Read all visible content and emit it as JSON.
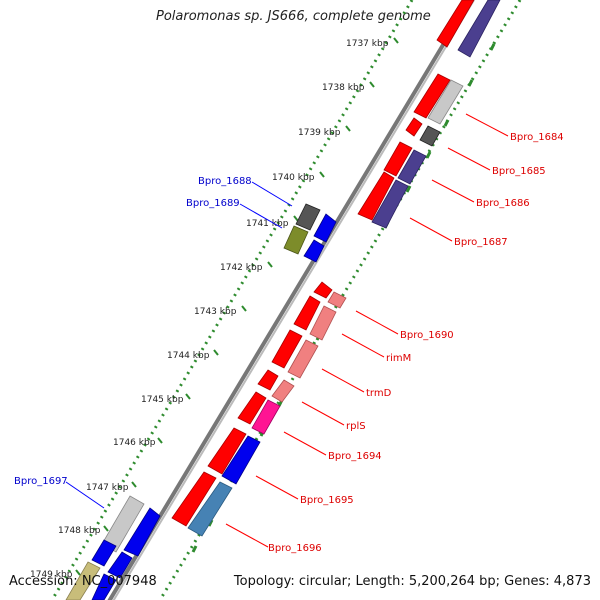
{
  "title": "Polaromonas sp. JS666, complete genome",
  "accession": "Accession: NC_007948",
  "topology": "Topology: circular; Length: 5,200,264 bp; Genes: 4,873",
  "ticks": [
    "1737 kbp",
    "1738 kbp",
    "1739 kbp",
    "1740 kbp",
    "1741 kbp",
    "1742 kbp",
    "1743 kbp",
    "1744 kbp",
    "1745 kbp",
    "1746 kbp",
    "1747 kbp",
    "1748 kbp",
    "1749 kbp"
  ],
  "gene_labels_right": [
    "Bpro_1684",
    "Bpro_1685",
    "Bpro_1686",
    "Bpro_1687",
    "Bpro_1690",
    "rimM",
    "trmD",
    "rplS",
    "Bpro_1694",
    "Bpro_1695",
    "Bpro_1696"
  ],
  "gene_labels_left": [
    "Bpro_1688",
    "Bpro_1689",
    "Bpro_1697"
  ],
  "colors": {
    "red": "#ff0000",
    "blue": "#0000ee",
    "purple": "#4b3f8f",
    "pink": "#f08080",
    "gray": "#c8c8c8",
    "darkgray": "#555555",
    "olive": "#7d8c2a",
    "magenta": "#ff1493",
    "steelblue": "#4682b4",
    "khaki": "#c8bd7a",
    "tickgreen": "#2e8b2e",
    "label_red": "#dd0000",
    "label_blue": "#0000cc",
    "backbone": "#808080"
  }
}
